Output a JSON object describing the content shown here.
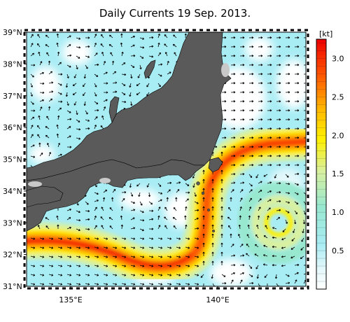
{
  "title": "Daily Currents 19 Sep. 2013.",
  "map": {
    "lat_ticks": [
      "39°N",
      "38°N",
      "37°N",
      "36°N",
      "35°N",
      "34°N",
      "33°N",
      "32°N",
      "31°N"
    ],
    "lon_ticks": [
      "135°E",
      "140°E"
    ],
    "lat_range": [
      31,
      39
    ],
    "lon_range": [
      133.5,
      143
    ],
    "land_color": "#5a5a5a",
    "arrow_color": "#000000"
  },
  "colorbar": {
    "unit": "[kt]",
    "labels": [
      "3.0",
      "2.5",
      "2.0",
      "1.5",
      "1.0",
      "0.5"
    ],
    "range": [
      0,
      3.25
    ],
    "stops": [
      "#ffffff",
      "#a8ecf4",
      "#98e8d0",
      "#d8f0a0",
      "#fff000",
      "#ffb800",
      "#ff5a00",
      "#ee0000"
    ]
  }
}
